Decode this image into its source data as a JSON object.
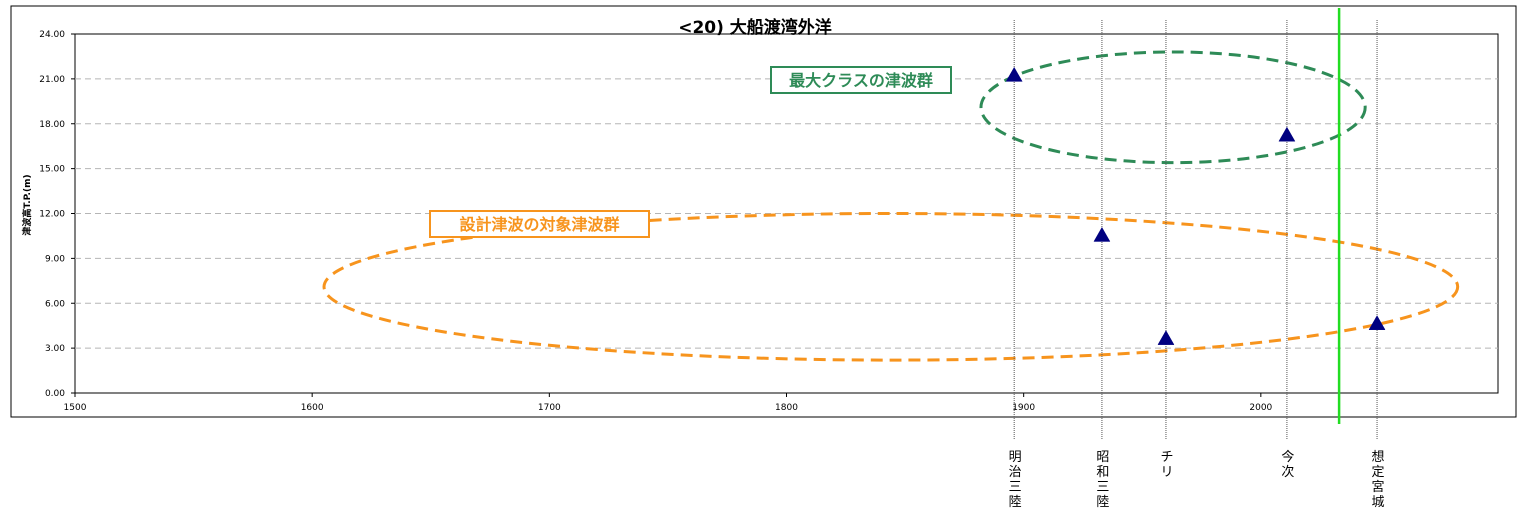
{
  "chart_data": {
    "type": "scatter",
    "title": "<20) 大船渡湾外洋",
    "ylabel": "津波高T.P.(m)",
    "xlabel": "",
    "xlim": [
      1500,
      2100
    ],
    "ylim": [
      0,
      24
    ],
    "x_ticks": [
      "1500",
      "1600",
      "1700",
      "1800",
      "1900",
      "2000"
    ],
    "y_ticks": [
      "0.00",
      "3.00",
      "6.00",
      "9.00",
      "12.00",
      "15.00",
      "18.00",
      "21.00",
      "24.00"
    ],
    "grid": "horizontal dashed",
    "series": [
      {
        "marker": "triangle",
        "color": "#000080",
        "points": [
          {
            "x": 1896,
            "y": 21.3
          },
          {
            "x": 1933,
            "y": 10.6
          },
          {
            "x": 1960,
            "y": 3.7
          },
          {
            "x": 2011,
            "y": 17.3
          },
          {
            "x": 2049,
            "y": 4.7
          }
        ]
      }
    ],
    "event_lines": [
      {
        "x": 1896,
        "label": "明治三陸"
      },
      {
        "x": 1933,
        "label": "昭和三陸"
      },
      {
        "x": 1960,
        "label": "チリ"
      },
      {
        "x": 2011,
        "label": "今次"
      },
      {
        "x": 2049,
        "label": "想定宮城"
      }
    ],
    "reference_line": {
      "x": 2033,
      "color": "#22dd22"
    },
    "annotations": [
      {
        "text": "最大クラスの津波群",
        "color": "#2e8b57",
        "ellipse": {
          "cx": 1963,
          "cy": 19.1,
          "rx": 81,
          "ry": 3.7
        }
      },
      {
        "text": "設計津波の対象津波群",
        "color": "#f7941d",
        "ellipse": {
          "cx": 1844,
          "cy": 7.1,
          "rx": 239,
          "ry": 4.9
        }
      }
    ]
  }
}
